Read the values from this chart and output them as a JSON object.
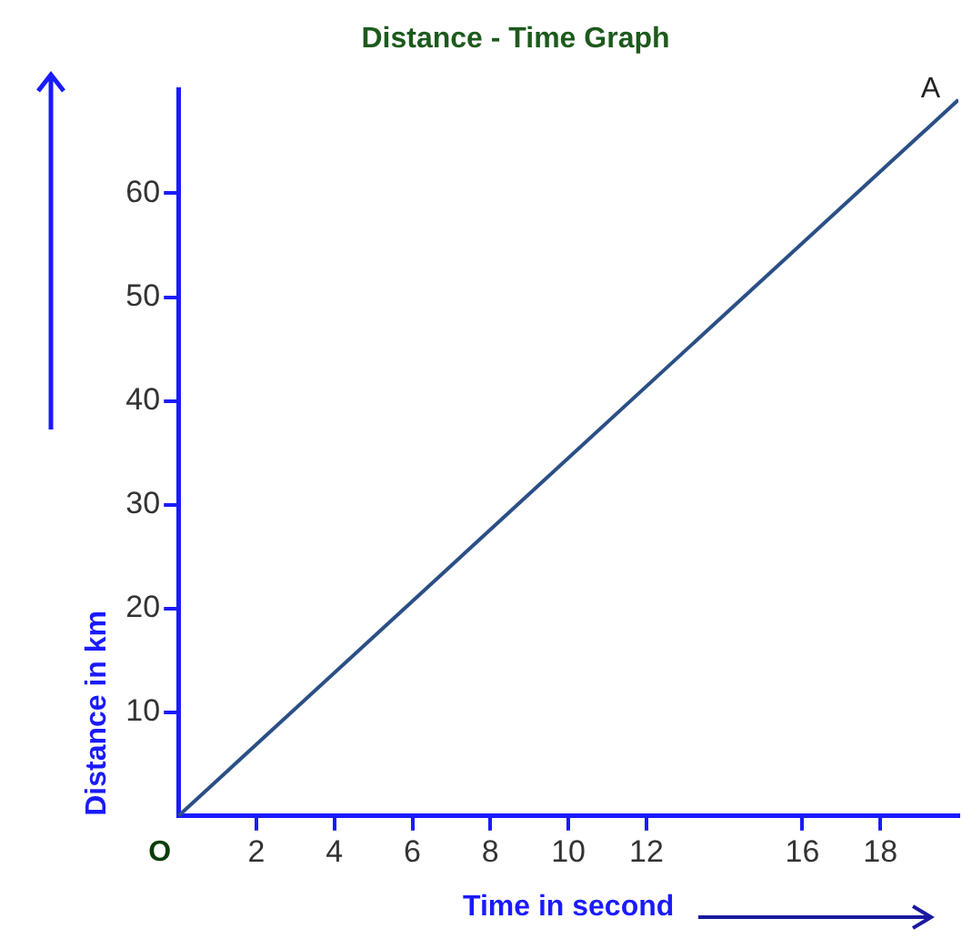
{
  "chart_data": {
    "type": "line",
    "title": "Distance - Time Graph",
    "xlabel": "Time in second",
    "ylabel": "Distance in km",
    "x": [
      0,
      20
    ],
    "series": [
      {
        "color": "#2b4f86",
        "values": [
          0,
          69
        ]
      }
    ],
    "xlim": [
      0,
      20
    ],
    "ylim": [
      0,
      70
    ],
    "xticks": [
      2,
      4,
      6,
      8,
      10,
      12,
      16,
      18
    ],
    "yticks": [
      10,
      20,
      30,
      40,
      50,
      60
    ],
    "annotations": [
      {
        "text": "A",
        "x": 20,
        "y": 69
      },
      {
        "text": "O",
        "x": 0,
        "y": 0
      }
    ],
    "grid": false,
    "legend": false,
    "marker": "none",
    "line_style": "solid"
  }
}
